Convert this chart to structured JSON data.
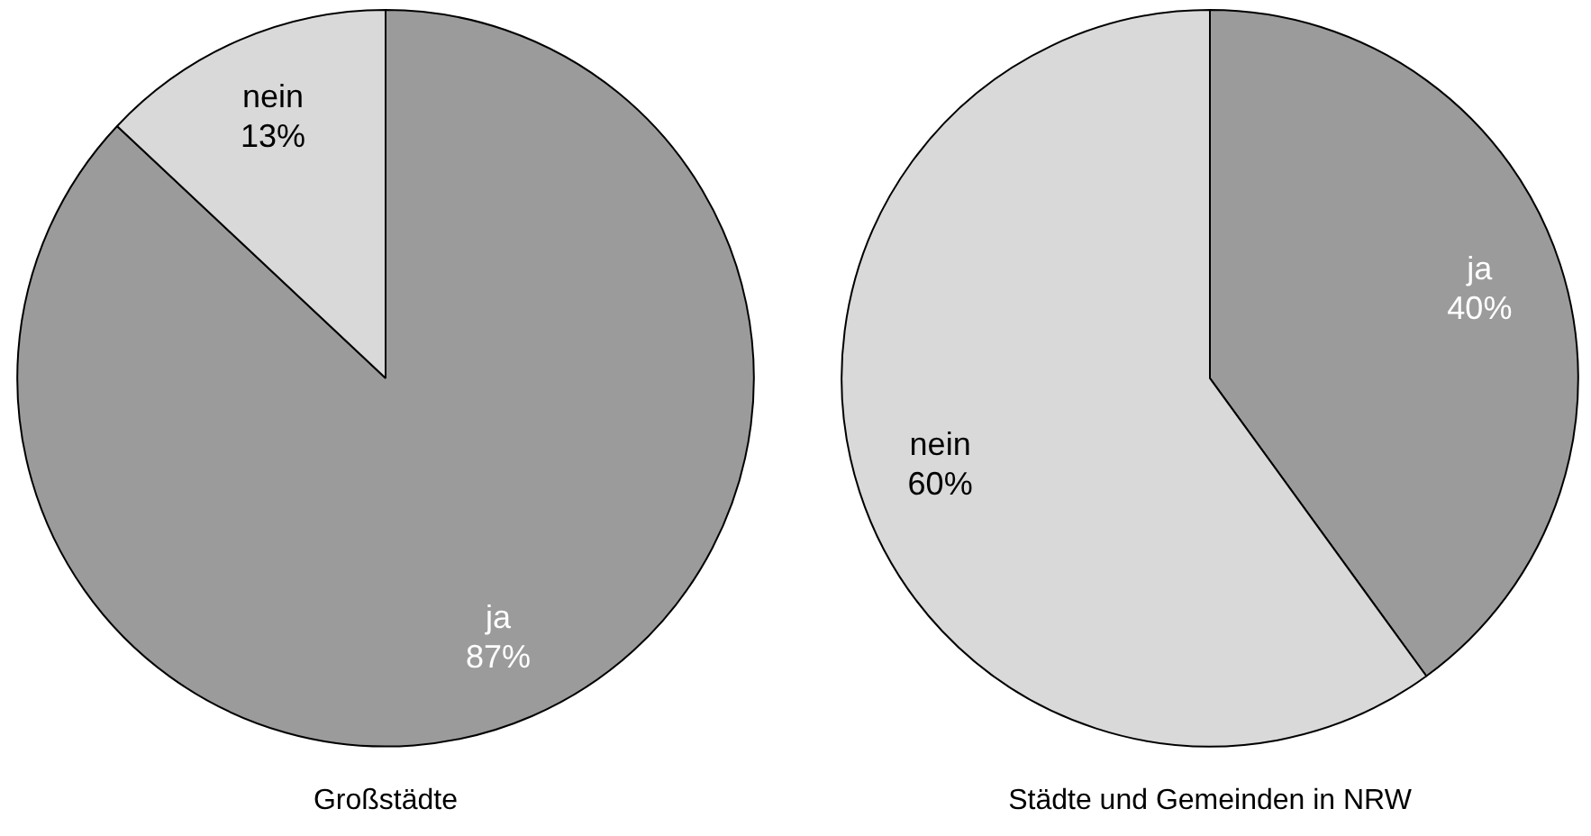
{
  "chart_data": [
    {
      "type": "pie",
      "title": "Großstädte",
      "categories": [
        "ja",
        "nein"
      ],
      "values": [
        87,
        13
      ],
      "colors": [
        "#9b9b9b",
        "#d9d9d9"
      ],
      "value_labels": [
        "87%",
        "13%"
      ],
      "legend": false
    },
    {
      "type": "pie",
      "title": "Städte und Gemeinden in NRW",
      "categories": [
        "ja",
        "nein"
      ],
      "values": [
        40,
        60
      ],
      "colors": [
        "#9b9b9b",
        "#d9d9d9"
      ],
      "value_labels": [
        "40%",
        "60%"
      ],
      "legend": false
    }
  ]
}
